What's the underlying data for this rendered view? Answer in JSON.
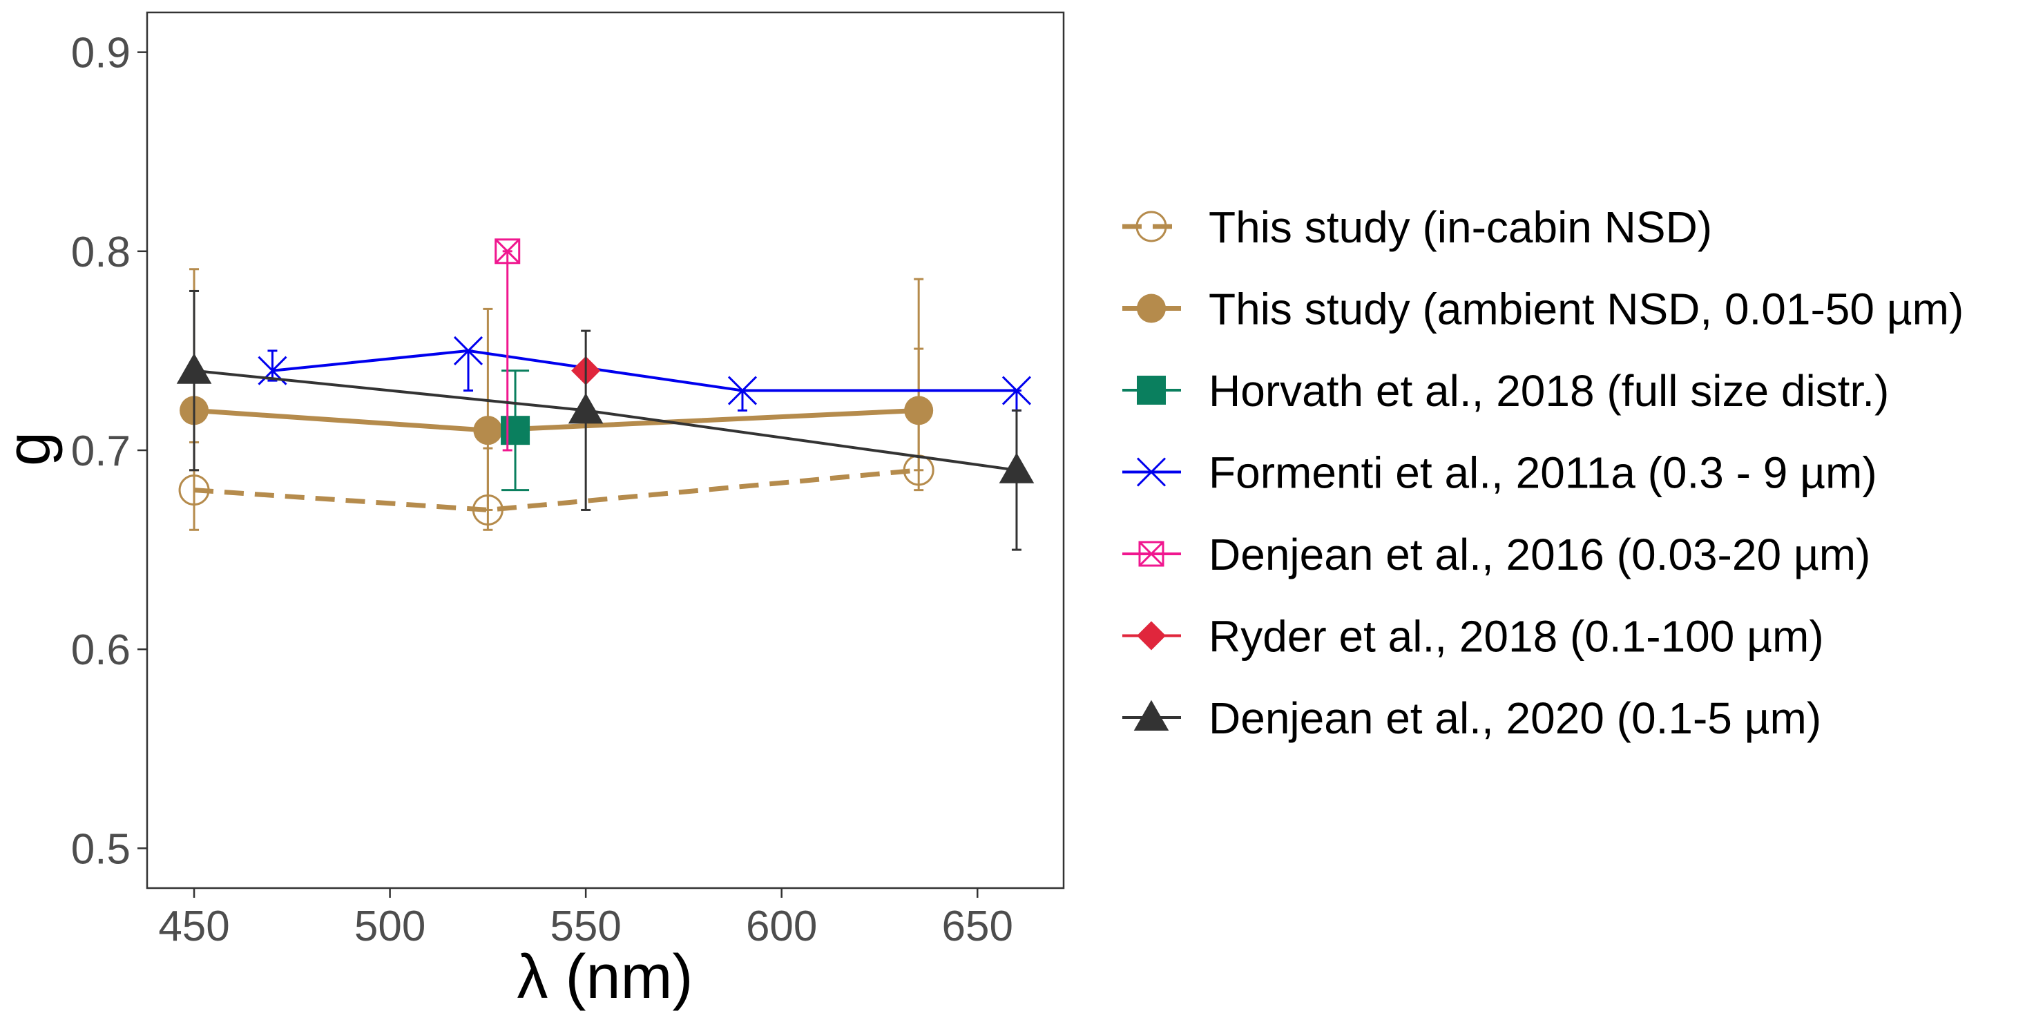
{
  "chart_data": {
    "type": "line",
    "xlabel": "λ (nm)",
    "ylabel": "g",
    "xlim": [
      438,
      672
    ],
    "ylim": [
      0.48,
      0.92
    ],
    "x_ticks": [
      450,
      500,
      550,
      600,
      650
    ],
    "y_ticks": [
      0.5,
      0.6,
      0.7,
      0.8,
      0.9
    ],
    "x_tick_labels": [
      "450",
      "500",
      "550",
      "600",
      "650"
    ],
    "y_tick_labels": [
      "0.5",
      "0.6",
      "0.7",
      "0.8",
      "0.9"
    ],
    "grid": false,
    "legend_position": "right",
    "series": [
      {
        "name": "This study (in-cabin NSD)",
        "color": "#B58B4C",
        "marker": "open-circle",
        "line": "dashed",
        "points": [
          {
            "x": 450,
            "y": 0.68,
            "ymin": 0.66,
            "ymax": 0.704
          },
          {
            "x": 525,
            "y": 0.67,
            "ymin": 0.66,
            "ymax": 0.701
          },
          {
            "x": 635,
            "y": 0.69,
            "ymin": 0.68,
            "ymax": 0.751
          }
        ]
      },
      {
        "name": "This study (ambient NSD, 0.01-50 µm)",
        "color": "#B58B4C",
        "marker": "filled-circle",
        "line": "solid",
        "points": [
          {
            "x": 450,
            "y": 0.72,
            "ymin": 0.69,
            "ymax": 0.791
          },
          {
            "x": 525,
            "y": 0.71,
            "ymin": 0.67,
            "ymax": 0.771
          },
          {
            "x": 635,
            "y": 0.72,
            "ymin": 0.69,
            "ymax": 0.786
          }
        ]
      },
      {
        "name": "Horvath et al., 2018 (full size distr.)",
        "color": "#0A7F5E",
        "marker": "square",
        "line": "solid",
        "points": [
          {
            "x": 532,
            "y": 0.71,
            "ymin": 0.68,
            "ymax": 0.74
          }
        ]
      },
      {
        "name": "Formenti et al., 2011a (0.3 - 9 µm)",
        "color": "#0000EE",
        "marker": "x",
        "line": "solid",
        "points": [
          {
            "x": 470,
            "y": 0.74,
            "ymin": 0.735,
            "ymax": 0.75
          },
          {
            "x": 520,
            "y": 0.75,
            "ymin": 0.73,
            "ymax": 0.75
          },
          {
            "x": 590,
            "y": 0.73,
            "ymin": 0.72,
            "ymax": 0.73
          },
          {
            "x": 660,
            "y": 0.73,
            "ymin": 0.72,
            "ymax": 0.73
          }
        ]
      },
      {
        "name": "Denjean et al., 2016 (0.03-20 µm)",
        "color": "#F0178F",
        "marker": "boxed-x",
        "line": "solid",
        "points": [
          {
            "x": 530,
            "y": 0.8,
            "ymin": 0.7,
            "ymax": 0.8
          }
        ]
      },
      {
        "name": "Ryder et al., 2018 (0.1-100 µm)",
        "color": "#E0263C",
        "marker": "diamond",
        "line": "solid",
        "points": [
          {
            "x": 550,
            "y": 0.74,
            "ymin": 0.74,
            "ymax": 0.74
          }
        ]
      },
      {
        "name": "Denjean et al., 2020 (0.1-5 µm)",
        "color": "#333333",
        "marker": "triangle",
        "line": "solid",
        "points": [
          {
            "x": 450,
            "y": 0.74,
            "ymin": 0.69,
            "ymax": 0.78
          },
          {
            "x": 550,
            "y": 0.72,
            "ymin": 0.67,
            "ymax": 0.76
          },
          {
            "x": 660,
            "y": 0.69,
            "ymin": 0.65,
            "ymax": 0.72
          }
        ]
      }
    ]
  }
}
